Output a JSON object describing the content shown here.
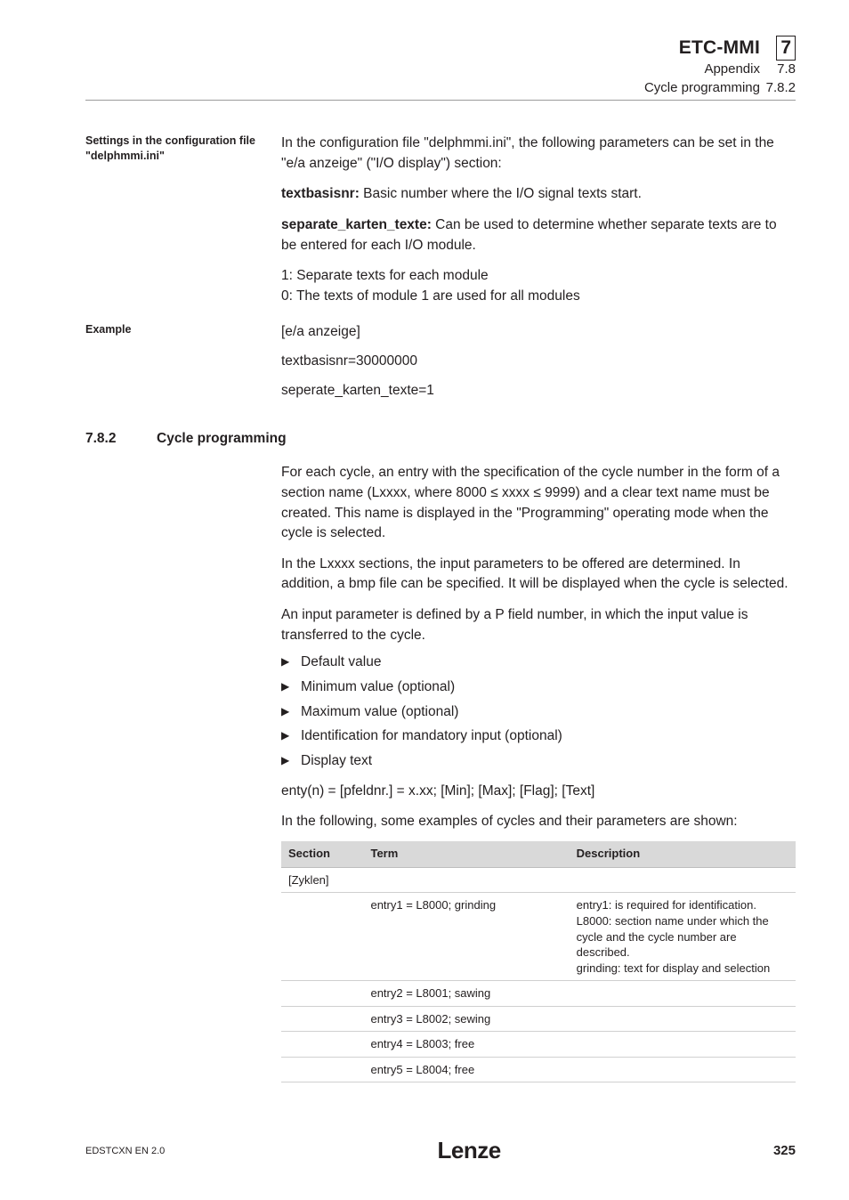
{
  "header": {
    "title": "ETC-MMI",
    "sub1": "Appendix",
    "sub2": "Cycle programming",
    "chapter": "7",
    "sec": "7.8",
    "subsec": "7.8.2"
  },
  "blocks": {
    "settings_side": "Settings in the configuration file \"delphmmi.ini\"",
    "settings_p1": "In the configuration file \"delphmmi.ini\", the following parameters can be set in the \"e/a anzeige\" (\"I/O display\") section:",
    "settings_p2_b": "textbasisnr:",
    "settings_p2_r": " Basic number where the I/O signal texts start.",
    "settings_p3_b": "separate_karten_texte:",
    "settings_p3_r": " Can be used to determine whether separate texts are to be entered for each I/O module.",
    "settings_p4a": "1: Separate texts for each module",
    "settings_p4b": "0: The texts of module 1 are used for all modules",
    "example_side": "Example",
    "example_l1": "[e/a anzeige]",
    "example_l2": "textbasisnr=30000000",
    "example_l3": "seperate_karten_texte=1",
    "sec_num": "7.8.2",
    "sec_title": "Cycle programming",
    "cyc_p1": "For each cycle, an entry with the specification of the cycle number in the form of a section name (Lxxxx, where 8000 ≤ xxxx ≤ 9999) and a clear text name must be created. This name is displayed in the \"Programming\" operating mode when the cycle is selected.",
    "cyc_p2": "In the Lxxxx sections, the input parameters to be offered are determined. In addition, a bmp file can be specified. It will be displayed when the cycle is selected.",
    "cyc_p3": "An input parameter is defined by a P field number, in which the input value is transferred to the cycle.",
    "bullets": [
      "Default value",
      "Minimum value (optional)",
      "Maximum value (optional)",
      "Identification for mandatory input (optional)",
      "Display text"
    ],
    "enty": "enty(n) = [pfeldnr.] = x.xx; [Min]; [Max]; [Flag]; [Text]",
    "cyc_p4": "In the following, some examples of cycles and their parameters are shown:"
  },
  "table": {
    "columns": [
      "Section",
      "Term",
      "Description"
    ],
    "col_widths": [
      "16%",
      "40%",
      "44%"
    ],
    "rows": [
      [
        "[Zyklen]",
        "",
        ""
      ],
      [
        "",
        "entry1 = L8000; grinding",
        "entry1: is required for identification.\nL8000: section name under which the cycle and the cycle number are described.\ngrinding: text for display and selection"
      ],
      [
        "",
        "entry2 = L8001; sawing",
        ""
      ],
      [
        "",
        "entry3 = L8002; sewing",
        ""
      ],
      [
        "",
        "entry4 = L8003; free",
        ""
      ],
      [
        "",
        "entry5 = L8004; free",
        ""
      ]
    ],
    "header_bg": "#d9d9d9",
    "border_color": "#d0d0d0"
  },
  "footer": {
    "left": "EDSTCXN  EN   2.0",
    "logo": "Lenze",
    "page": "325"
  }
}
